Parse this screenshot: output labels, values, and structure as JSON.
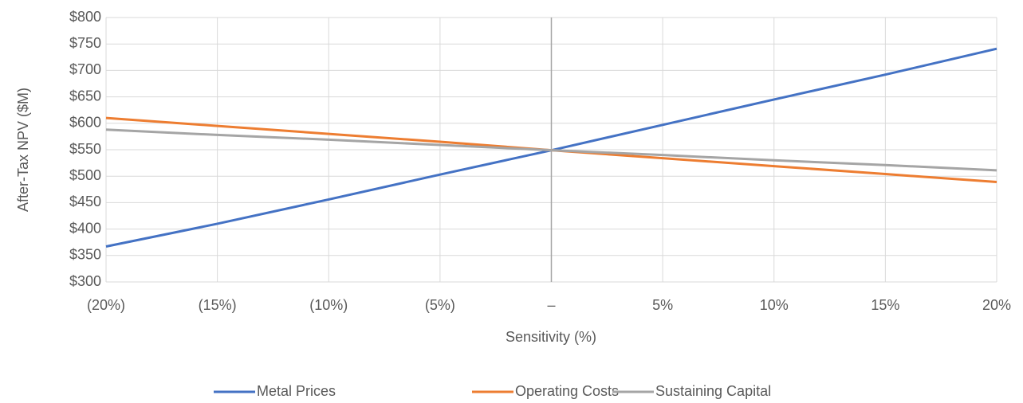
{
  "chart_data": {
    "type": "line",
    "x_label": "Sensitivity (%)",
    "y_label": "After-Tax NPV ($M)",
    "categories": [
      "(20%)",
      "(15%)",
      "(10%)",
      "(5%)",
      "–",
      "5%",
      "10%",
      "15%",
      "20%"
    ],
    "series": [
      {
        "name": "Metal Prices",
        "color": "#4472c4",
        "values": [
          367,
          410,
          456,
          503,
          549,
          597,
          645,
          692,
          741
        ]
      },
      {
        "name": "Operating Costs",
        "color": "#ed7d31",
        "values": [
          610,
          595,
          580,
          565,
          549,
          534,
          519,
          504,
          489
        ]
      },
      {
        "name": "Sustaining Capital",
        "color": "#a5a5a5",
        "values": [
          588,
          578,
          569,
          559,
          549,
          540,
          530,
          521,
          511
        ]
      }
    ],
    "ylim": [
      300,
      800
    ],
    "yticks": [
      {
        "value": 300,
        "label": "$300"
      },
      {
        "value": 350,
        "label": "$350"
      },
      {
        "value": 400,
        "label": "$400"
      },
      {
        "value": 450,
        "label": "$450"
      },
      {
        "value": 500,
        "label": "$500"
      },
      {
        "value": 550,
        "label": "$550"
      },
      {
        "value": 600,
        "label": "$600"
      },
      {
        "value": 650,
        "label": "$650"
      },
      {
        "value": 700,
        "label": "$700"
      },
      {
        "value": 750,
        "label": "$750"
      },
      {
        "value": 800,
        "label": "$800"
      }
    ],
    "grid": true,
    "legend": "bottom"
  }
}
